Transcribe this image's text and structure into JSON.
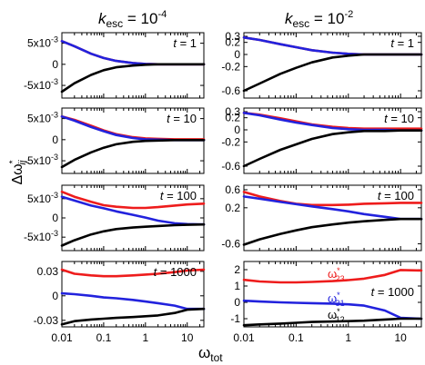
{
  "figure": {
    "ylabel_main": "Δω",
    "ylabel_sup": "*",
    "ylabel_sub": "ij",
    "xlabel": "ω",
    "xlabel_sub": "tot",
    "columns": [
      {
        "title_k": "k",
        "title_sub": "esc",
        "title_eq": " = 10",
        "title_exp": "-4"
      },
      {
        "title_k": "k",
        "title_sub": "esc",
        "title_eq": " = 10",
        "title_exp": "-2"
      }
    ],
    "colors": {
      "red": "#ee1c1c",
      "blue": "#2222dd",
      "black": "#000000"
    }
  },
  "chart_data": [
    {
      "type": "line",
      "panel": "k_esc=1e-4, t=1",
      "t_label": "t = 1",
      "xscale": "log",
      "xlim": [
        0.01,
        25
      ],
      "ylim": [
        -0.008,
        0.0075
      ],
      "yticks": [
        0.005,
        0,
        -0.005
      ],
      "ytick_labels": [
        "5x10-3",
        "0",
        "-5x10-3"
      ],
      "xticks": [],
      "xtick_labels": [],
      "x": [
        0.01,
        0.02,
        0.05,
        0.1,
        0.2,
        0.5,
        1,
        2,
        5,
        10,
        25
      ],
      "series": [
        {
          "name": "red",
          "color": "#ee1c1c",
          "values": [
            0.0055,
            0.0043,
            0.0025,
            0.0015,
            0.0008,
            0.0003,
            0.0001,
            0,
            0,
            0,
            0
          ]
        },
        {
          "name": "blue",
          "color": "#2222dd",
          "values": [
            0.0055,
            0.0043,
            0.0025,
            0.0015,
            0.0008,
            0.0003,
            0.0001,
            0,
            0,
            0,
            0
          ]
        },
        {
          "name": "black",
          "color": "#000000",
          "values": [
            -0.0065,
            -0.0045,
            -0.0025,
            -0.0014,
            -0.0007,
            -0.0003,
            -0.0001,
            0,
            0,
            0,
            0
          ]
        }
      ]
    },
    {
      "type": "line",
      "panel": "k_esc=1e-2, t=1",
      "t_label": "t = 1",
      "xscale": "log",
      "xlim": [
        0.01,
        25
      ],
      "ylim": [
        -0.72,
        0.36
      ],
      "yticks": [
        0.3,
        0.2,
        0,
        -0.2,
        -0.6
      ],
      "ytick_labels": [
        "0.3",
        "0.2",
        "0",
        "-0.2",
        "-0.6"
      ],
      "xticks": [],
      "xtick_labels": [],
      "x": [
        0.01,
        0.02,
        0.05,
        0.1,
        0.2,
        0.5,
        1,
        2,
        5,
        10,
        25
      ],
      "series": [
        {
          "name": "red",
          "color": "#ee1c1c",
          "values": [
            0.28,
            0.24,
            0.17,
            0.12,
            0.07,
            0.03,
            0.01,
            0,
            0,
            0,
            0
          ]
        },
        {
          "name": "blue",
          "color": "#2222dd",
          "values": [
            0.28,
            0.24,
            0.17,
            0.12,
            0.07,
            0.03,
            0.01,
            0,
            0,
            0,
            0
          ]
        },
        {
          "name": "black",
          "color": "#000000",
          "values": [
            -0.6,
            -0.48,
            -0.32,
            -0.22,
            -0.13,
            -0.05,
            -0.02,
            0,
            0,
            0,
            0
          ]
        }
      ]
    },
    {
      "type": "line",
      "panel": "k_esc=1e-4, t=10",
      "t_label": "t = 10",
      "xscale": "log",
      "xlim": [
        0.01,
        25
      ],
      "ylim": [
        -0.008,
        0.0075
      ],
      "yticks": [
        0.005,
        0,
        -0.005
      ],
      "ytick_labels": [
        "5x10-3",
        "0",
        "-5x10-3"
      ],
      "xticks": [],
      "xtick_labels": [],
      "x": [
        0.01,
        0.02,
        0.05,
        0.1,
        0.2,
        0.5,
        1,
        2,
        5,
        10,
        25
      ],
      "series": [
        {
          "name": "red",
          "color": "#ee1c1c",
          "values": [
            0.0055,
            0.0047,
            0.0033,
            0.0022,
            0.0013,
            0.0006,
            0.0003,
            0.0002,
            0.0001,
            0.0001,
            0.0001
          ]
        },
        {
          "name": "blue",
          "color": "#2222dd",
          "values": [
            0.0055,
            0.0045,
            0.003,
            0.002,
            0.0011,
            0.0004,
            0.0001,
            0,
            -0.0001,
            -0.0001,
            -0.0001
          ]
        },
        {
          "name": "black",
          "color": "#000000",
          "values": [
            -0.0065,
            -0.0048,
            -0.003,
            -0.0019,
            -0.0011,
            -0.0005,
            -0.0003,
            -0.0002,
            -0.0001,
            -0.0001,
            -0.0001
          ]
        }
      ]
    },
    {
      "type": "line",
      "panel": "k_esc=1e-2, t=10",
      "t_label": "t = 10",
      "xscale": "log",
      "xlim": [
        0.01,
        25
      ],
      "ylim": [
        -0.72,
        0.36
      ],
      "yticks": [
        0.3,
        0.2,
        0,
        -0.2,
        -0.6
      ],
      "ytick_labels": [
        "0.3",
        "0.2",
        "0",
        "-0.2",
        "-0.6"
      ],
      "xticks": [],
      "xtick_labels": [],
      "x": [
        0.01,
        0.02,
        0.05,
        0.1,
        0.2,
        0.5,
        1,
        2,
        5,
        10,
        25
      ],
      "series": [
        {
          "name": "red",
          "color": "#ee1c1c",
          "values": [
            0.28,
            0.25,
            0.19,
            0.14,
            0.09,
            0.05,
            0.03,
            0.02,
            0.02,
            0.02,
            0.02
          ]
        },
        {
          "name": "blue",
          "color": "#2222dd",
          "values": [
            0.28,
            0.24,
            0.17,
            0.12,
            0.08,
            0.03,
            0.01,
            0,
            0,
            -0.01,
            -0.01
          ]
        },
        {
          "name": "black",
          "color": "#000000",
          "values": [
            -0.6,
            -0.48,
            -0.33,
            -0.24,
            -0.15,
            -0.07,
            -0.04,
            -0.02,
            -0.02,
            -0.01,
            -0.01
          ]
        }
      ]
    },
    {
      "type": "line",
      "panel": "k_esc=1e-4, t=100",
      "t_label": "t = 100",
      "xscale": "log",
      "xlim": [
        0.01,
        25
      ],
      "ylim": [
        -0.0085,
        0.0085
      ],
      "yticks": [
        0.005,
        0,
        -0.005
      ],
      "ytick_labels": [
        "5x10-3",
        "0",
        "-5x10-3"
      ],
      "xticks": [],
      "xtick_labels": [],
      "x": [
        0.01,
        0.02,
        0.05,
        0.1,
        0.2,
        0.5,
        1,
        2,
        5,
        10,
        25
      ],
      "series": [
        {
          "name": "red",
          "color": "#ee1c1c",
          "values": [
            0.0068,
            0.0055,
            0.0042,
            0.0033,
            0.0029,
            0.0026,
            0.0026,
            0.0028,
            0.0032,
            0.0035,
            0.0037
          ]
        },
        {
          "name": "blue",
          "color": "#2222dd",
          "values": [
            0.0055,
            0.0045,
            0.0032,
            0.0025,
            0.0017,
            0.0008,
            0.0001,
            -0.0007,
            -0.0014,
            -0.0016,
            -0.0017
          ]
        },
        {
          "name": "black",
          "color": "#000000",
          "values": [
            -0.0072,
            -0.0058,
            -0.0043,
            -0.0035,
            -0.0029,
            -0.0025,
            -0.0023,
            -0.0021,
            -0.0019,
            -0.0018,
            -0.0017
          ]
        }
      ]
    },
    {
      "type": "line",
      "panel": "k_esc=1e-2, t=100",
      "t_label": "t = 100",
      "xscale": "log",
      "xlim": [
        0.01,
        25
      ],
      "ylim": [
        -0.75,
        0.7
      ],
      "yticks": [
        0.6,
        0.2,
        -0.6
      ],
      "ytick_labels": [
        "0.6",
        "0.2",
        "-0.6"
      ],
      "xticks": [],
      "xtick_labels": [],
      "x": [
        0.01,
        0.02,
        0.05,
        0.1,
        0.2,
        0.5,
        1,
        2,
        5,
        10,
        25
      ],
      "series": [
        {
          "name": "red",
          "color": "#ee1c1c",
          "values": [
            0.55,
            0.45,
            0.35,
            0.29,
            0.26,
            0.26,
            0.27,
            0.29,
            0.3,
            0.31,
            0.31
          ]
        },
        {
          "name": "blue",
          "color": "#2222dd",
          "values": [
            0.45,
            0.4,
            0.33,
            0.28,
            0.23,
            0.17,
            0.12,
            0.06,
            0,
            -0.05,
            -0.05
          ]
        },
        {
          "name": "black",
          "color": "#000000",
          "values": [
            -0.62,
            -0.5,
            -0.38,
            -0.3,
            -0.23,
            -0.17,
            -0.13,
            -0.1,
            -0.07,
            -0.05,
            -0.05
          ]
        }
      ]
    },
    {
      "type": "line",
      "panel": "k_esc=1e-4, t=1000",
      "t_label": "t = 1000",
      "xscale": "log",
      "xlim": [
        0.01,
        25
      ],
      "ylim": [
        -0.038,
        0.042
      ],
      "yticks": [
        0.03,
        0,
        -0.03
      ],
      "ytick_labels": [
        "0.03",
        "0",
        "-0.03"
      ],
      "xticks": [
        0.01,
        0.1,
        1,
        10
      ],
      "xtick_labels": [
        "0.01",
        "0.1",
        "1",
        "10"
      ],
      "x": [
        0.01,
        0.02,
        0.05,
        0.1,
        0.2,
        0.5,
        1,
        2,
        5,
        10,
        25
      ],
      "series": [
        {
          "name": "red",
          "color": "#ee1c1c",
          "values": [
            0.032,
            0.027,
            0.025,
            0.024,
            0.024,
            0.025,
            0.026,
            0.027,
            0.029,
            0.031,
            0.032
          ]
        },
        {
          "name": "blue",
          "color": "#2222dd",
          "values": [
            0.003,
            0.002,
            0.0,
            -0.002,
            -0.003,
            -0.005,
            -0.007,
            -0.009,
            -0.012,
            -0.016,
            -0.016
          ]
        },
        {
          "name": "black",
          "color": "#000000",
          "values": [
            -0.035,
            -0.031,
            -0.029,
            -0.028,
            -0.027,
            -0.026,
            -0.025,
            -0.024,
            -0.021,
            -0.017,
            -0.016
          ]
        }
      ]
    },
    {
      "type": "line",
      "panel": "k_esc=1e-2, t=1000",
      "t_label": "t = 1000",
      "xscale": "log",
      "xlim": [
        0.01,
        25
      ],
      "ylim": [
        -1.5,
        2.5
      ],
      "yticks": [
        2,
        1,
        0,
        -1
      ],
      "ytick_labels": [
        "2",
        "1",
        "0",
        "-1"
      ],
      "xticks": [
        0.01,
        0.1,
        1,
        10
      ],
      "xtick_labels": [
        "0.01",
        "0.1",
        "1",
        "10"
      ],
      "x": [
        0.01,
        0.02,
        0.05,
        0.1,
        0.2,
        0.5,
        1,
        2,
        5,
        10,
        25
      ],
      "series": [
        {
          "name": "ω*23",
          "color": "#ee1c1c",
          "values": [
            1.38,
            1.28,
            1.22,
            1.22,
            1.25,
            1.3,
            1.36,
            1.45,
            1.68,
            1.98,
            1.95
          ]
        },
        {
          "name": "ω*31",
          "color": "#2222dd",
          "values": [
            0.1,
            0.05,
            0.0,
            -0.03,
            -0.05,
            -0.08,
            -0.12,
            -0.2,
            -0.5,
            -0.95,
            -1.0
          ]
        },
        {
          "name": "ω*12",
          "color": "#000000",
          "values": [
            -1.4,
            -1.35,
            -1.3,
            -1.25,
            -1.2,
            -1.17,
            -1.15,
            -1.12,
            -1.05,
            -1.0,
            -1.0
          ]
        }
      ],
      "annotations": [
        {
          "text": "ω",
          "sup": "*",
          "sub": "23",
          "color": "#ee1c1c"
        },
        {
          "text": "ω",
          "sup": "*",
          "sub": "31",
          "color": "#2222dd"
        },
        {
          "text": "ω",
          "sup": "*",
          "sub": "12",
          "color": "#000000"
        }
      ]
    }
  ]
}
